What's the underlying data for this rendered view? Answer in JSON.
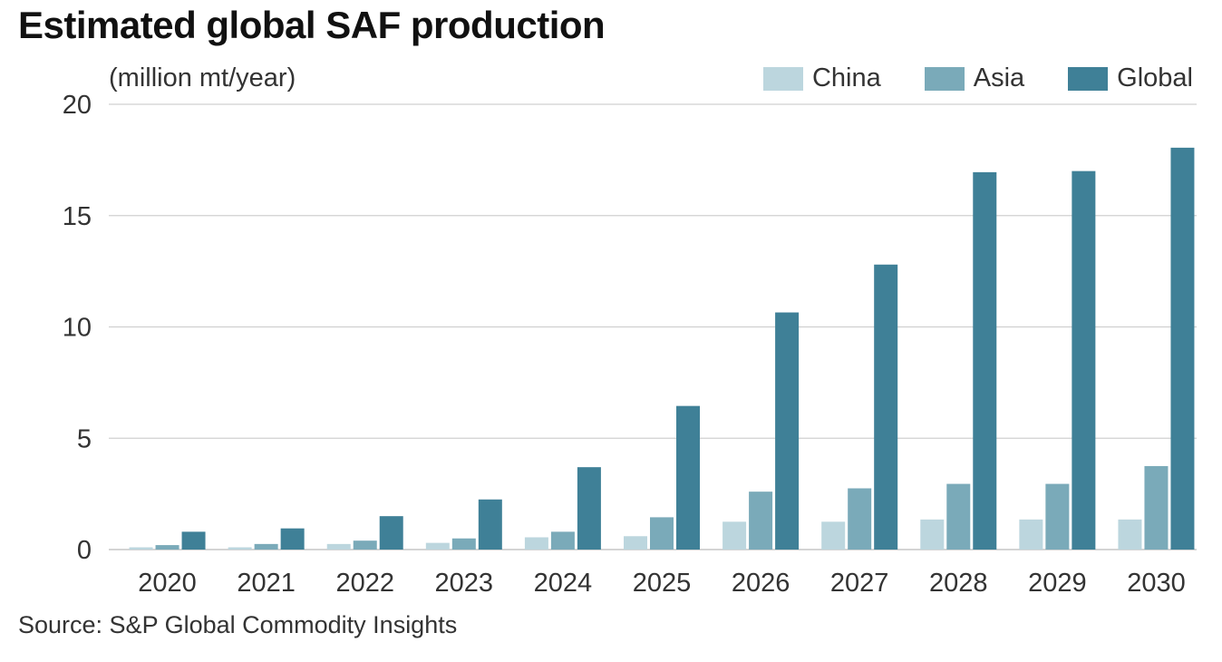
{
  "chart_data": {
    "type": "bar",
    "title": "Estimated global SAF production",
    "ylabel": "(million mt/year)",
    "xlabel": "",
    "categories": [
      "2020",
      "2021",
      "2022",
      "2023",
      "2024",
      "2025",
      "2026",
      "2027",
      "2028",
      "2029",
      "2030"
    ],
    "series": [
      {
        "name": "China",
        "color": "#bcd6de",
        "values": [
          0.1,
          0.1,
          0.25,
          0.3,
          0.55,
          0.6,
          1.25,
          1.25,
          1.35,
          1.35,
          1.35
        ]
      },
      {
        "name": "Asia",
        "color": "#7aaab9",
        "values": [
          0.2,
          0.25,
          0.4,
          0.5,
          0.8,
          1.45,
          2.6,
          2.75,
          2.95,
          2.95,
          3.75
        ]
      },
      {
        "name": "Global",
        "color": "#3f8097",
        "values": [
          0.8,
          0.95,
          1.5,
          2.25,
          3.7,
          6.45,
          10.65,
          12.8,
          16.95,
          17.0,
          18.05
        ]
      }
    ],
    "ylim": [
      0,
      20
    ],
    "yticks": [
      0,
      5,
      10,
      15,
      20
    ],
    "grid": true,
    "legend_position": "top-right",
    "source": "Source: S&P Global Commodity Insights"
  }
}
